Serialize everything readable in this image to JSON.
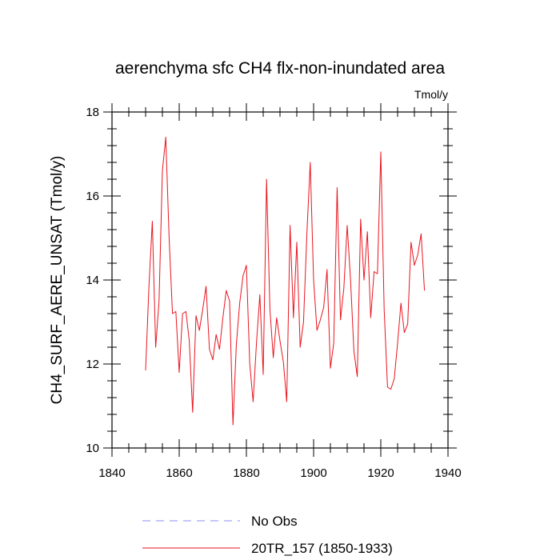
{
  "chart_data": {
    "type": "line",
    "title": "aerenchyma sfc CH4 flx-non-inundated area",
    "units_label": "Tmol/y",
    "xlabel": "",
    "ylabel": "CH4_SURF_AERE_UNSAT  (Tmol/y)",
    "xlim": [
      1840,
      1940
    ],
    "ylim": [
      10,
      18
    ],
    "x_ticks": [
      1840,
      1860,
      1880,
      1900,
      1920,
      1940
    ],
    "y_ticks": [
      10,
      12,
      14,
      16,
      18
    ],
    "x_tick_labels": [
      "1840",
      "1860",
      "1880",
      "1900",
      "1920",
      "1940"
    ],
    "y_tick_labels": [
      "10",
      "12",
      "14",
      "16",
      "18"
    ],
    "grid": false,
    "legend_position": "bottom",
    "legend": [
      {
        "name": "No Obs",
        "style": "dashed",
        "color": "#8c8cf0"
      },
      {
        "name": "20TR_157 (1850-1933)",
        "style": "solid",
        "color": "#e8141e"
      }
    ],
    "series": [
      {
        "name": "20TR_157 (1850-1933)",
        "color": "#e8141e",
        "x": [
          1850,
          1851,
          1852,
          1853,
          1854,
          1855,
          1856,
          1857,
          1858,
          1859,
          1860,
          1861,
          1862,
          1863,
          1864,
          1865,
          1866,
          1867,
          1868,
          1869,
          1870,
          1871,
          1872,
          1873,
          1874,
          1875,
          1876,
          1877,
          1878,
          1879,
          1880,
          1881,
          1882,
          1883,
          1884,
          1885,
          1886,
          1887,
          1888,
          1889,
          1890,
          1891,
          1892,
          1893,
          1894,
          1895,
          1896,
          1897,
          1898,
          1899,
          1900,
          1901,
          1902,
          1903,
          1904,
          1905,
          1906,
          1907,
          1908,
          1909,
          1910,
          1911,
          1912,
          1913,
          1914,
          1915,
          1916,
          1917,
          1918,
          1919,
          1920,
          1921,
          1922,
          1923,
          1924,
          1925,
          1926,
          1927,
          1928,
          1929,
          1930,
          1931,
          1932,
          1933
        ],
        "values": [
          11.85,
          13.85,
          15.4,
          12.4,
          13.5,
          16.6,
          17.4,
          15.0,
          13.2,
          13.25,
          11.8,
          13.2,
          13.25,
          12.55,
          10.85,
          13.15,
          12.8,
          13.3,
          13.85,
          12.35,
          12.1,
          12.7,
          12.35,
          13.1,
          13.75,
          13.5,
          10.55,
          12.45,
          13.45,
          14.1,
          14.35,
          12.0,
          11.1,
          12.5,
          13.65,
          11.75,
          16.4,
          13.3,
          12.15,
          13.1,
          12.55,
          12.05,
          11.1,
          15.3,
          13.1,
          14.9,
          12.4,
          13.0,
          15.1,
          16.8,
          14.0,
          12.8,
          13.05,
          13.35,
          14.25,
          11.9,
          12.5,
          16.2,
          13.05,
          13.8,
          15.3,
          14.0,
          12.3,
          11.7,
          15.45,
          14.0,
          15.15,
          13.1,
          14.2,
          14.15,
          17.05,
          13.3,
          11.45,
          11.4,
          11.65,
          12.5,
          13.45,
          12.75,
          12.95,
          14.9,
          14.35,
          14.6,
          15.1,
          13.75
        ]
      }
    ]
  }
}
